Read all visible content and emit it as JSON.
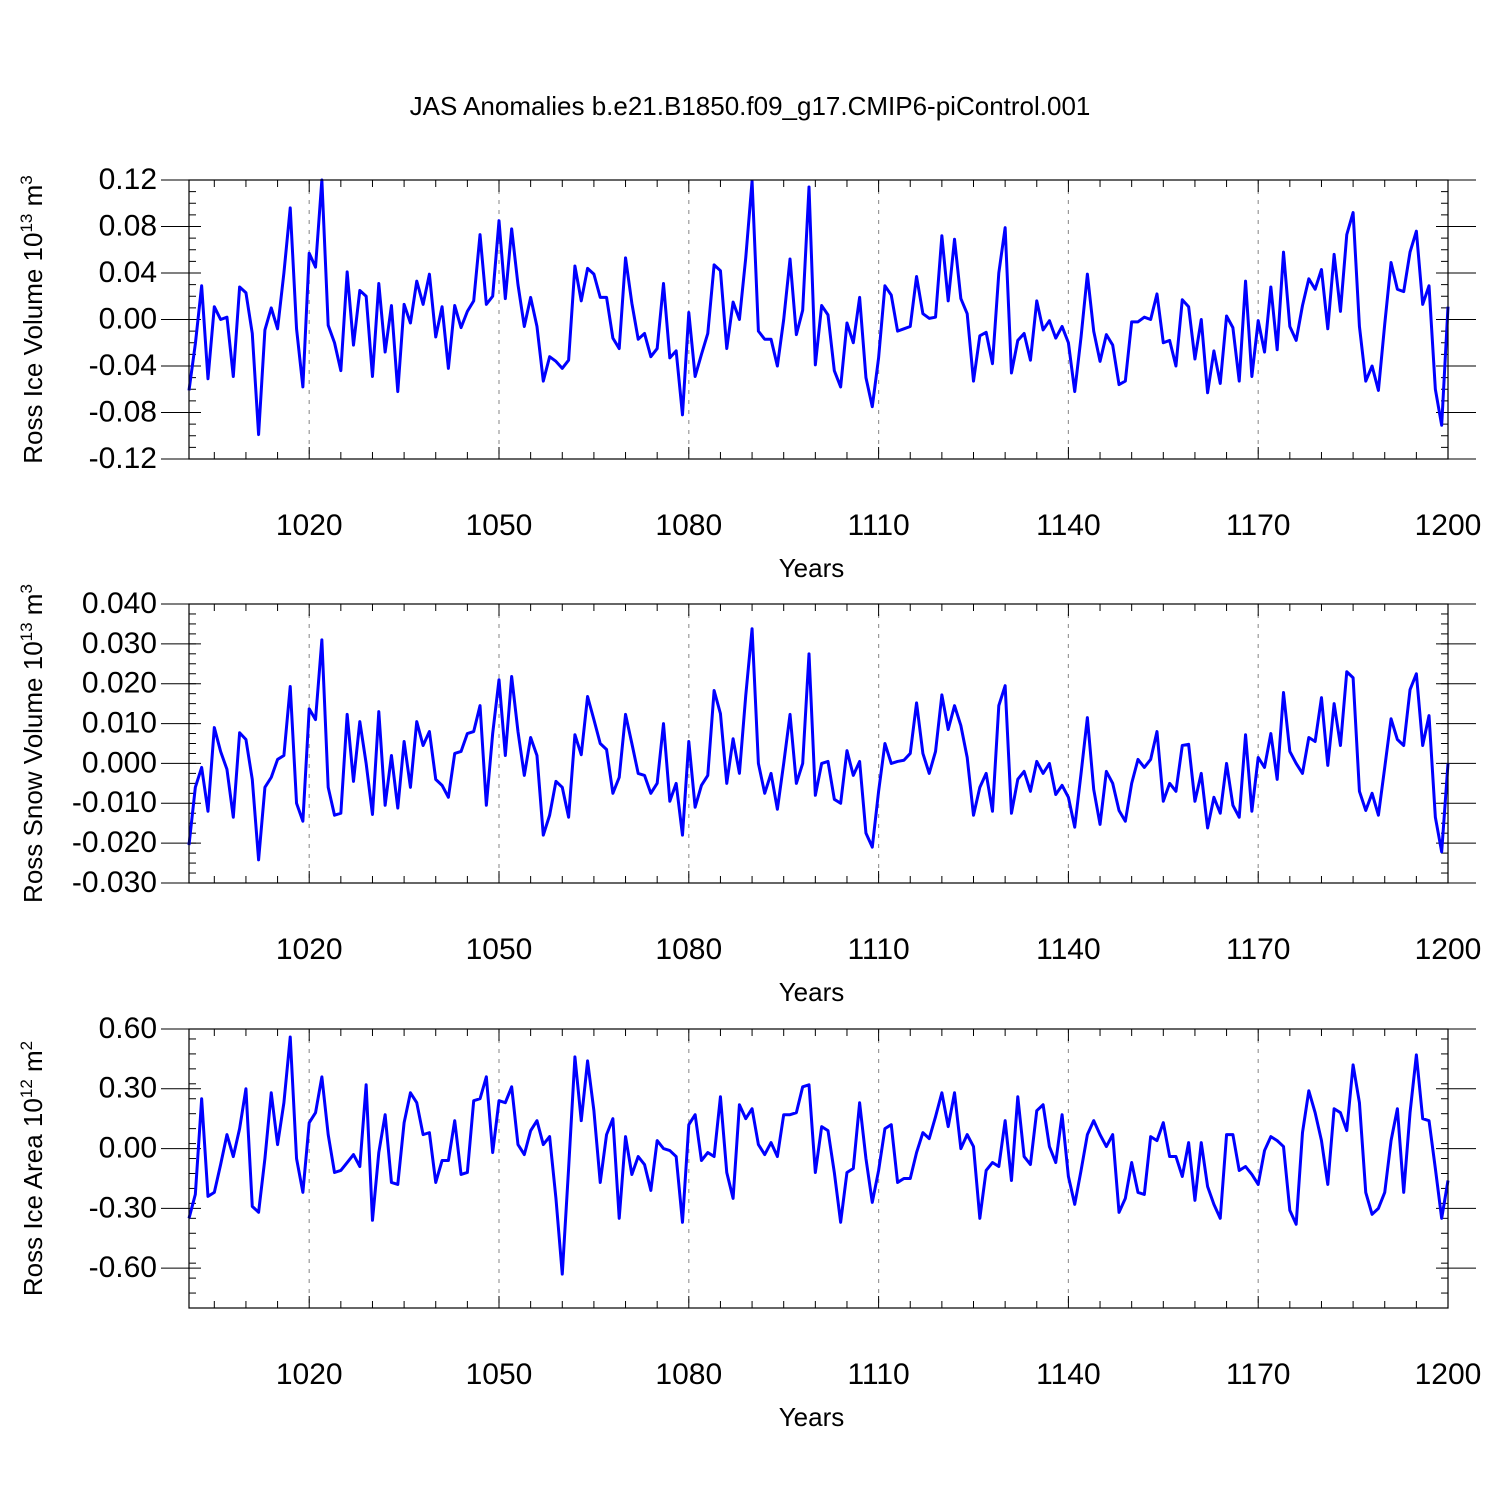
{
  "title": "JAS Anomalies b.e21.B1850.f09_g17.CMIP6-piControl.001",
  "colors": {
    "series": "#0000ff",
    "grid": "#999999",
    "axis": "#000000"
  },
  "chart_data": [
    {
      "type": "line",
      "name": "ross-ice-volume",
      "ylabel_main": "Ross Ice Volume 10",
      "ylabel_sup": "13",
      "ylabel_unit": " m",
      "ylabel_unit_sup": "3",
      "xlabel": "Years",
      "xlim": [
        1001,
        1200
      ],
      "ylim": [
        -0.12,
        0.12
      ],
      "yticks": [
        -0.12,
        -0.08,
        -0.04,
        0.0,
        0.04,
        0.08,
        0.12
      ],
      "ytick_labels": [
        "-0.12",
        "-0.08",
        "-0.04",
        "0.00",
        "0.04",
        "0.08",
        "0.12"
      ],
      "xticks": [
        1020,
        1050,
        1080,
        1110,
        1140,
        1170,
        1200
      ],
      "xtick_labels": [
        "1020",
        "1050",
        "1080",
        "1110",
        "1140",
        "1170",
        "1200"
      ],
      "grid_x": true,
      "x_start": 1001,
      "values": [
        -0.061,
        -0.021,
        0.029,
        -0.051,
        0.011,
        0.0,
        0.002,
        -0.049,
        0.028,
        0.023,
        -0.012,
        -0.099,
        -0.009,
        0.01,
        -0.008,
        0.04,
        0.096,
        -0.008,
        -0.058,
        0.057,
        0.045,
        0.12,
        -0.005,
        -0.02,
        -0.044,
        0.041,
        -0.022,
        0.025,
        0.02,
        -0.049,
        0.031,
        -0.028,
        0.012,
        -0.062,
        0.013,
        -0.003,
        0.033,
        0.013,
        0.039,
        -0.015,
        0.011,
        -0.042,
        0.012,
        -0.007,
        0.007,
        0.016,
        0.073,
        0.013,
        0.02,
        0.085,
        0.018,
        0.078,
        0.03,
        -0.006,
        0.019,
        -0.006,
        -0.053,
        -0.032,
        -0.036,
        -0.042,
        -0.035,
        0.046,
        0.016,
        0.044,
        0.039,
        0.019,
        0.019,
        -0.016,
        -0.025,
        0.053,
        0.014,
        -0.017,
        -0.012,
        -0.032,
        -0.025,
        0.031,
        -0.033,
        -0.027,
        -0.082,
        0.006,
        -0.049,
        -0.03,
        -0.012,
        0.047,
        0.042,
        -0.025,
        0.015,
        0.0,
        0.053,
        0.119,
        -0.01,
        -0.017,
        -0.017,
        -0.04,
        0.0,
        0.052,
        -0.013,
        0.008,
        0.114,
        -0.039,
        0.012,
        0.004,
        -0.044,
        -0.058,
        -0.003,
        -0.02,
        0.019,
        -0.05,
        -0.075,
        -0.033,
        0.029,
        0.021,
        -0.01,
        -0.008,
        -0.006,
        0.037,
        0.005,
        0.001,
        0.002,
        0.072,
        0.016,
        0.069,
        0.018,
        0.005,
        -0.053,
        -0.014,
        -0.011,
        -0.038,
        0.04,
        0.079,
        -0.046,
        -0.018,
        -0.012,
        -0.035,
        0.016,
        -0.009,
        -0.001,
        -0.016,
        -0.006,
        -0.02,
        -0.062,
        -0.015,
        0.039,
        -0.01,
        -0.036,
        -0.013,
        -0.022,
        -0.056,
        -0.053,
        -0.002,
        -0.002,
        0.002,
        0.0,
        0.022,
        -0.02,
        -0.018,
        -0.04,
        0.017,
        0.011,
        -0.034,
        0.0,
        -0.063,
        -0.027,
        -0.055,
        0.003,
        -0.007,
        -0.053,
        0.033,
        -0.049,
        -0.001,
        -0.028,
        0.028,
        -0.026,
        0.058,
        -0.006,
        -0.018,
        0.012,
        0.035,
        0.026,
        0.043,
        -0.008,
        0.056,
        0.007,
        0.073,
        0.092,
        -0.006,
        -0.053,
        -0.04,
        -0.061,
        -0.004,
        0.049,
        0.026,
        0.024,
        0.058,
        0.076,
        0.013,
        0.029,
        -0.06,
        -0.091,
        0.011
      ]
    },
    {
      "type": "line",
      "name": "ross-snow-volume",
      "ylabel_main": "Ross Snow Volume 10",
      "ylabel_sup": "13",
      "ylabel_unit": " m",
      "ylabel_unit_sup": "3",
      "xlabel": "Years",
      "xlim": [
        1001,
        1200
      ],
      "ylim": [
        -0.03,
        0.04
      ],
      "yticks": [
        -0.03,
        -0.02,
        -0.01,
        0.0,
        0.01,
        0.02,
        0.03,
        0.04
      ],
      "ytick_labels": [
        "-0.030",
        "-0.020",
        "-0.010",
        "0.000",
        "0.010",
        "0.020",
        "0.030",
        "0.040"
      ],
      "xticks": [
        1020,
        1050,
        1080,
        1110,
        1140,
        1170,
        1200
      ],
      "xtick_labels": [
        "1020",
        "1050",
        "1080",
        "1110",
        "1140",
        "1170",
        "1200"
      ],
      "grid_x": true,
      "x_start": 1001,
      "values": [
        -0.0205,
        -0.006,
        -0.001,
        -0.012,
        0.009,
        0.003,
        -0.0015,
        -0.0135,
        0.0077,
        0.006,
        -0.004,
        -0.0242,
        -0.006,
        -0.0035,
        0.001,
        0.002,
        0.0193,
        -0.01,
        -0.0145,
        0.0137,
        0.011,
        0.031,
        -0.006,
        -0.013,
        -0.0125,
        0.0123,
        -0.0045,
        0.0105,
        0.0,
        -0.0128,
        0.013,
        -0.0105,
        0.002,
        -0.0112,
        0.0055,
        -0.006,
        0.0105,
        0.0045,
        0.008,
        -0.004,
        -0.0055,
        -0.0085,
        0.0025,
        0.003,
        0.0075,
        0.008,
        0.0145,
        -0.0105,
        0.0075,
        0.021,
        0.002,
        0.0218,
        0.008,
        -0.003,
        0.0065,
        0.002,
        -0.018,
        -0.013,
        -0.0045,
        -0.006,
        -0.0135,
        0.0072,
        0.0022,
        0.0168,
        0.011,
        0.005,
        0.0035,
        -0.0075,
        -0.0035,
        0.0123,
        0.005,
        -0.0025,
        -0.003,
        -0.0075,
        -0.005,
        0.01,
        -0.0095,
        -0.005,
        -0.018,
        0.0055,
        -0.011,
        -0.0055,
        -0.003,
        0.0183,
        0.0125,
        -0.005,
        0.0062,
        -0.0025,
        0.017,
        0.0338,
        0.0,
        -0.0075,
        -0.0025,
        -0.0115,
        0.0,
        0.0123,
        -0.005,
        0.0,
        0.0275,
        -0.008,
        0.0,
        0.0005,
        -0.009,
        -0.01,
        0.0032,
        -0.003,
        0.0005,
        -0.0175,
        -0.021,
        -0.007,
        0.005,
        0.0,
        0.0005,
        0.0008,
        0.0025,
        0.0152,
        0.0025,
        -0.0025,
        0.003,
        0.0172,
        0.0085,
        0.0145,
        0.0095,
        0.0015,
        -0.013,
        -0.006,
        -0.0025,
        -0.012,
        0.0145,
        0.0195,
        -0.0125,
        -0.004,
        -0.002,
        -0.007,
        0.0005,
        -0.0025,
        0.0,
        -0.0078,
        -0.0055,
        -0.0085,
        -0.016,
        -0.0025,
        0.0115,
        -0.0065,
        -0.0153,
        -0.002,
        -0.005,
        -0.0118,
        -0.0145,
        -0.005,
        0.001,
        -0.001,
        0.001,
        0.008,
        -0.0095,
        -0.005,
        -0.007,
        0.0045,
        0.0048,
        -0.0095,
        -0.0025,
        -0.0162,
        -0.0085,
        -0.0125,
        0.0,
        -0.0105,
        -0.0135,
        0.0072,
        -0.012,
        0.0015,
        -0.001,
        0.0075,
        -0.004,
        0.0178,
        0.003,
        0.0,
        -0.0025,
        0.0065,
        0.0055,
        0.0165,
        -0.0005,
        0.015,
        0.0045,
        0.023,
        0.0215,
        -0.007,
        -0.0118,
        -0.0075,
        -0.013,
        -0.001,
        0.0112,
        0.006,
        0.0045,
        0.0185,
        0.0225,
        0.0045,
        0.012,
        -0.0135,
        -0.0222,
        0.0
      ]
    },
    {
      "type": "line",
      "name": "ross-ice-area",
      "ylabel_main": "Ross Ice Area 10",
      "ylabel_sup": "12",
      "ylabel_unit": " m",
      "ylabel_unit_sup": "2",
      "xlabel": "Years",
      "xlim": [
        1001,
        1200
      ],
      "ylim": [
        -0.8,
        0.6
      ],
      "yticks": [
        -0.6,
        -0.3,
        0.0,
        0.3,
        0.6
      ],
      "ytick_labels": [
        "-0.60",
        "-0.30",
        "0.00",
        "0.30",
        "0.60"
      ],
      "xticks": [
        1020,
        1050,
        1080,
        1110,
        1140,
        1170,
        1200
      ],
      "xtick_labels": [
        "1020",
        "1050",
        "1080",
        "1110",
        "1140",
        "1170",
        "1200"
      ],
      "grid_x": true,
      "x_start": 1001,
      "values": [
        -0.35,
        -0.23,
        0.25,
        -0.24,
        -0.22,
        -0.08,
        0.07,
        -0.04,
        0.1,
        0.3,
        -0.29,
        -0.32,
        -0.05,
        0.28,
        0.02,
        0.23,
        0.56,
        -0.05,
        -0.22,
        0.13,
        0.18,
        0.36,
        0.07,
        -0.12,
        -0.11,
        -0.07,
        -0.03,
        -0.09,
        0.32,
        -0.36,
        -0.02,
        0.17,
        -0.17,
        -0.18,
        0.13,
        0.28,
        0.23,
        0.07,
        0.08,
        -0.17,
        -0.06,
        -0.06,
        0.14,
        -0.13,
        -0.12,
        0.24,
        0.25,
        0.36,
        -0.02,
        0.24,
        0.23,
        0.31,
        0.02,
        -0.03,
        0.09,
        0.14,
        0.02,
        0.06,
        -0.25,
        -0.63,
        -0.1,
        0.46,
        0.14,
        0.44,
        0.19,
        -0.17,
        0.07,
        0.15,
        -0.35,
        0.06,
        -0.13,
        -0.04,
        -0.08,
        -0.21,
        0.04,
        0.0,
        -0.01,
        -0.04,
        -0.37,
        0.12,
        0.17,
        -0.06,
        -0.02,
        -0.04,
        0.26,
        -0.12,
        -0.25,
        0.22,
        0.15,
        0.2,
        0.02,
        -0.03,
        0.03,
        -0.04,
        0.17,
        0.17,
        0.18,
        0.31,
        0.32,
        -0.12,
        0.11,
        0.09,
        -0.12,
        -0.37,
        -0.12,
        -0.1,
        0.23,
        -0.05,
        -0.27,
        -0.11,
        0.1,
        0.12,
        -0.17,
        -0.15,
        -0.15,
        -0.02,
        0.08,
        0.05,
        0.16,
        0.28,
        0.11,
        0.28,
        0.0,
        0.07,
        0.01,
        -0.35,
        -0.11,
        -0.07,
        -0.09,
        0.14,
        -0.16,
        0.26,
        -0.04,
        -0.08,
        0.19,
        0.22,
        0.01,
        -0.07,
        0.17,
        -0.14,
        -0.28,
        -0.11,
        0.07,
        0.14,
        0.07,
        0.01,
        0.07,
        -0.32,
        -0.25,
        -0.07,
        -0.22,
        -0.23,
        0.06,
        0.04,
        0.13,
        -0.04,
        -0.04,
        -0.14,
        0.03,
        -0.26,
        0.03,
        -0.19,
        -0.28,
        -0.35,
        0.07,
        0.07,
        -0.11,
        -0.09,
        -0.13,
        -0.18,
        -0.01,
        0.06,
        0.04,
        0.01,
        -0.31,
        -0.38,
        0.08,
        0.29,
        0.18,
        0.04,
        -0.18,
        0.2,
        0.18,
        0.09,
        0.42,
        0.23,
        -0.22,
        -0.33,
        -0.3,
        -0.22,
        0.04,
        0.2,
        -0.22,
        0.18,
        0.47,
        0.15,
        0.14,
        -0.1,
        -0.35,
        -0.16
      ]
    }
  ]
}
